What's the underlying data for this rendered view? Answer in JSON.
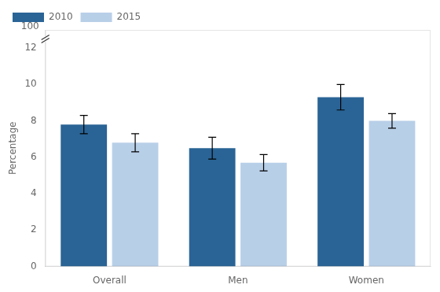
{
  "chart_data": {
    "type": "bar",
    "categories": [
      "Overall",
      "Men",
      "Women"
    ],
    "series": [
      {
        "name": "2010",
        "color": "#2a6496",
        "values": [
          7.8,
          6.5,
          9.3
        ],
        "errors": [
          0.5,
          0.6,
          0.7
        ]
      },
      {
        "name": "2015",
        "color": "#b8cfe8",
        "values": [
          6.8,
          5.7,
          8.0
        ],
        "errors": [
          0.5,
          0.45,
          0.4
        ]
      }
    ],
    "ylabel": "Percentage",
    "ylim": [
      0,
      13
    ],
    "yticks": [
      0,
      2,
      4,
      6,
      8,
      10,
      12
    ],
    "grid": false,
    "legend": "upper left",
    "annotations": [
      {
        "text": "100"
      }
    ]
  }
}
